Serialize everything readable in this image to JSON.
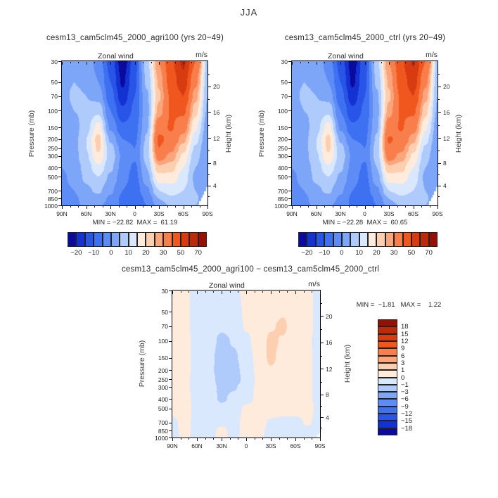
{
  "figure": {
    "season_title": "JJA"
  },
  "panels": {
    "agri100": {
      "title": "cesm13_cam5clm45_2000_agri100 (yrs 20−49)",
      "field": "Zonal wind",
      "units": "m/s",
      "minmax": "MIN = −22.82  MAX =  61.19"
    },
    "ctrl": {
      "title": "cesm13_cam5clm45_2000_ctrl (yrs 20−49)",
      "field": "Zonal wind",
      "units": "m/s",
      "minmax": "MIN = −22.28  MAX =  60.65"
    },
    "diff": {
      "title": "cesm13_cam5clm45_2000_agri100 − cesm13_cam5clm45_2000_ctrl",
      "field": "Zonal wind",
      "units": "m/s",
      "minmax": "MIN =  −1.81   MAX =    1.22"
    }
  },
  "axes": {
    "pressure_label": "Pressure (mb)",
    "height_label": "Height (km)",
    "pressure_ticks": [
      "30",
      "50",
      "70",
      "100",
      "150",
      "200",
      "250",
      "300",
      "400",
      "500",
      "700",
      "850",
      "1000"
    ],
    "pressure_tick_values": [
      30,
      50,
      70,
      100,
      150,
      200,
      250,
      300,
      400,
      500,
      700,
      850,
      1000
    ],
    "height_ticks": [
      {
        "label": "20",
        "p": 55.3
      },
      {
        "label": "16",
        "p": 103.5
      },
      {
        "label": "12",
        "p": 194.0
      },
      {
        "label": "8",
        "p": 356.5
      },
      {
        "label": "4",
        "p": 616.6
      }
    ],
    "height_minor_p": [
      40.5,
      75.65,
      141.7,
      265.0,
      472.2,
      795.0
    ],
    "lat_ticks": [
      {
        "label": "90N",
        "v": 90
      },
      {
        "label": "60N",
        "v": 60
      },
      {
        "label": "30N",
        "v": 30
      },
      {
        "label": "0",
        "v": 0
      },
      {
        "label": "30S",
        "v": -30
      },
      {
        "label": "60S",
        "v": -60
      },
      {
        "label": "90S",
        "v": -90
      }
    ],
    "lat_minor_step": 10
  },
  "colorbars": {
    "palette": [
      "#0A0A9E",
      "#1431D2",
      "#2954E8",
      "#3E70F2",
      "#5E8CF6",
      "#7EA6F8",
      "#AECBFB",
      "#DAE8FD",
      "#FEEBDC",
      "#FDCFB1",
      "#FBA57C",
      "#F87F4B",
      "#F0571F",
      "#D93B10",
      "#BC2A0C",
      "#970F02"
    ],
    "main": {
      "levels": [
        -20,
        -15,
        -10,
        -5,
        0,
        5,
        10,
        15,
        20,
        25,
        30,
        40,
        50,
        60,
        70
      ],
      "labels": [
        "−20",
        "−10",
        "0",
        "10",
        "20",
        "30",
        "50",
        "70"
      ],
      "label_level_indices": [
        0,
        2,
        4,
        6,
        8,
        10,
        12,
        14
      ]
    },
    "diff": {
      "levels": [
        -18,
        -15,
        -12,
        -9,
        -6,
        -3,
        -1,
        0,
        1,
        3,
        6,
        9,
        12,
        15,
        18
      ],
      "labels_top_to_bottom": [
        "18",
        "15",
        "12",
        "9",
        "6",
        "3",
        "1",
        "0",
        "−1",
        "−3",
        "−6",
        "−9",
        "−12",
        "−15",
        "−18"
      ]
    }
  },
  "chart_data": [
    {
      "type": "contour",
      "name": "cesm13_cam5clm45_2000_agri100",
      "season": "JJA",
      "variable": "Zonal wind",
      "units": "m/s",
      "min": -22.82,
      "max": 61.19,
      "levels": [
        -20,
        -15,
        -10,
        -5,
        0,
        5,
        10,
        15,
        20,
        25,
        30,
        40,
        50,
        60,
        70
      ],
      "lat": [
        90,
        75,
        60,
        45,
        30,
        15,
        0,
        -15,
        -30,
        -45,
        -60,
        -75,
        -90
      ],
      "pressure_mb": [
        30,
        50,
        70,
        100,
        150,
        200,
        250,
        300,
        400,
        500,
        700,
        850,
        1000
      ],
      "values": [
        [
          2,
          4,
          3,
          -2,
          -12,
          -23,
          -12,
          8,
          30,
          48,
          62,
          40,
          8
        ],
        [
          3,
          5,
          4,
          0,
          -10,
          -21,
          -11,
          6,
          26,
          45,
          56,
          32,
          6
        ],
        [
          3,
          6,
          5,
          3,
          -8,
          -18,
          -10,
          4,
          24,
          42,
          50,
          27,
          5
        ],
        [
          2,
          5,
          6,
          9,
          -5,
          -14,
          -9,
          3,
          27,
          41,
          42,
          22,
          4
        ],
        [
          1,
          3,
          8,
          17,
          -1,
          -9,
          -7,
          4,
          36,
          41,
          34,
          16,
          2
        ],
        [
          0,
          3,
          10,
          22,
          4,
          -5,
          -6,
          6,
          42,
          37,
          27,
          12,
          1
        ],
        [
          0,
          3,
          10,
          21,
          7,
          -2,
          -5,
          7,
          40,
          32,
          22,
          9,
          0
        ],
        [
          0,
          3,
          9,
          19,
          8,
          -1,
          -4,
          7,
          34,
          28,
          19,
          7,
          0
        ],
        [
          0,
          2,
          7,
          14,
          6,
          -2,
          -6,
          5,
          24,
          22,
          15,
          5,
          0
        ],
        [
          -1,
          2,
          6,
          10,
          4,
          -3,
          -7,
          3,
          18,
          18,
          13,
          4,
          0
        ],
        [
          -2,
          0,
          4,
          6,
          1,
          -5,
          -8,
          -1,
          10,
          12,
          10,
          5,
          0
        ],
        [
          -2,
          -1,
          2,
          3,
          -1,
          -6,
          -9,
          -4,
          5,
          9,
          8,
          6,
          0
        ],
        [
          -3,
          -1,
          1,
          1,
          -2,
          -6,
          -8,
          -5,
          2,
          6,
          6,
          5,
          0
        ]
      ]
    },
    {
      "type": "contour",
      "name": "cesm13_cam5clm45_2000_ctrl",
      "season": "JJA",
      "variable": "Zonal wind",
      "units": "m/s",
      "min": -22.28,
      "max": 60.65,
      "levels": [
        -20,
        -15,
        -10,
        -5,
        0,
        5,
        10,
        15,
        20,
        25,
        30,
        40,
        50,
        60,
        70
      ],
      "lat": [
        90,
        75,
        60,
        45,
        30,
        15,
        0,
        -15,
        -30,
        -45,
        -60,
        -75,
        -90
      ],
      "pressure_mb": [
        30,
        50,
        70,
        100,
        150,
        200,
        250,
        300,
        400,
        500,
        700,
        850,
        1000
      ],
      "values": [
        [
          2,
          4,
          3,
          -2,
          -12,
          -22.5,
          -12,
          8,
          30,
          48,
          61,
          40,
          8
        ],
        [
          3,
          5,
          4,
          0,
          -10,
          -21,
          -11,
          6,
          26,
          45,
          55,
          32,
          6
        ],
        [
          3,
          6,
          5,
          3,
          -8,
          -18,
          -10,
          4,
          24,
          42,
          50,
          27,
          5
        ],
        [
          2,
          5,
          6,
          9,
          -5,
          -14,
          -9,
          3,
          27,
          41,
          42,
          22,
          4
        ],
        [
          1,
          3,
          8,
          17,
          -1,
          -9,
          -7,
          4,
          35,
          41,
          34,
          16,
          2
        ],
        [
          0,
          3,
          10,
          21.5,
          4,
          -5,
          -6,
          6,
          41,
          37,
          27,
          12,
          1
        ],
        [
          0,
          3,
          10,
          21,
          7,
          -2,
          -5,
          7,
          39,
          32,
          22,
          9,
          0
        ],
        [
          0,
          3,
          9,
          19,
          8,
          -1,
          -4,
          7,
          34,
          28,
          19,
          7,
          0
        ],
        [
          0,
          2,
          7,
          14,
          6,
          -2,
          -6,
          5,
          24,
          22,
          15,
          5,
          0
        ],
        [
          -1,
          2,
          6,
          10,
          4,
          -3,
          -7,
          3,
          18,
          18,
          13,
          4,
          0
        ],
        [
          -2,
          0,
          4,
          6,
          1,
          -5,
          -8,
          -1,
          10,
          12,
          10,
          5,
          0
        ],
        [
          -2,
          -1,
          2,
          3,
          -1,
          -6,
          -9,
          -4,
          5,
          9,
          8,
          6,
          0
        ],
        [
          -3,
          -1,
          1,
          1,
          -2,
          -6,
          -8,
          -5,
          2,
          6,
          6,
          5,
          0
        ]
      ]
    },
    {
      "type": "contour",
      "name": "cesm13_cam5clm45_2000_agri100 - cesm13_cam5clm45_2000_ctrl",
      "season": "JJA",
      "variable": "Zonal wind difference",
      "units": "m/s",
      "min": -1.81,
      "max": 1.22,
      "levels": [
        -18,
        -15,
        -12,
        -9,
        -6,
        -3,
        -1,
        0,
        1,
        3,
        6,
        9,
        12,
        15,
        18
      ],
      "lat": [
        90,
        75,
        60,
        45,
        30,
        15,
        0,
        -15,
        -30,
        -45,
        -60,
        -75,
        -90
      ],
      "pressure_mb": [
        30,
        50,
        70,
        100,
        150,
        200,
        250,
        300,
        400,
        500,
        700,
        850,
        1000
      ],
      "values": [
        [
          0.3,
          0.2,
          -0.3,
          -0.4,
          -0.5,
          -0.2,
          0.2,
          0.4,
          0.4,
          0.3,
          0.3,
          0.2,
          -0.3
        ],
        [
          0.3,
          0.2,
          -0.3,
          -0.4,
          -0.6,
          -0.5,
          0.2,
          0.4,
          0.6,
          0.9,
          0.3,
          0.2,
          -0.3
        ],
        [
          0.3,
          0.2,
          -0.3,
          -0.4,
          -0.8,
          -0.6,
          0.1,
          0.4,
          0.9,
          1.2,
          0.3,
          0.2,
          -0.3
        ],
        [
          0.3,
          0.2,
          -0.2,
          -0.5,
          -1.3,
          -0.9,
          -0.2,
          0.4,
          1.2,
          0.9,
          0.3,
          0.1,
          -0.3
        ],
        [
          0.3,
          0.2,
          -0.2,
          -0.6,
          -1.6,
          -1.2,
          -0.4,
          0.3,
          1.22,
          0.6,
          0.2,
          0.1,
          -0.2
        ],
        [
          0.3,
          0.2,
          -0.2,
          -0.6,
          -1.81,
          -1.4,
          -0.5,
          0.2,
          0.9,
          0.4,
          0.2,
          0.1,
          -0.2
        ],
        [
          0.3,
          0.2,
          -0.3,
          -0.5,
          -1.5,
          -1.6,
          -0.6,
          0.2,
          0.6,
          0.3,
          0.2,
          0.1,
          -0.2
        ],
        [
          0.3,
          0.2,
          -0.3,
          -0.5,
          -1.3,
          -1.1,
          -0.5,
          0.2,
          0.4,
          0.3,
          0.2,
          0.1,
          -0.2
        ],
        [
          0.3,
          0.2,
          -0.2,
          -0.4,
          -1.2,
          -0.7,
          -0.3,
          0.2,
          0.4,
          0.3,
          0.3,
          0.1,
          -0.2
        ],
        [
          0.3,
          0.3,
          -0.2,
          -0.3,
          -0.6,
          -0.5,
          0.2,
          0.3,
          0.4,
          0.3,
          0.3,
          0.2,
          -0.2
        ],
        [
          -0.2,
          0.3,
          -0.3,
          -0.3,
          -0.2,
          -0.3,
          0.3,
          0.3,
          -0.1,
          -0.2,
          -0.2,
          0.1,
          -0.3
        ],
        [
          -0.3,
          0.3,
          -0.3,
          -0.3,
          0.2,
          -0.3,
          0.3,
          0.2,
          -0.2,
          -0.3,
          -0.3,
          -0.2,
          -0.4
        ],
        [
          -0.3,
          0.2,
          -0.3,
          -0.3,
          0.2,
          -0.3,
          0.3,
          0.1,
          -0.2,
          -0.3,
          -0.3,
          -0.3,
          -0.4
        ]
      ]
    }
  ]
}
